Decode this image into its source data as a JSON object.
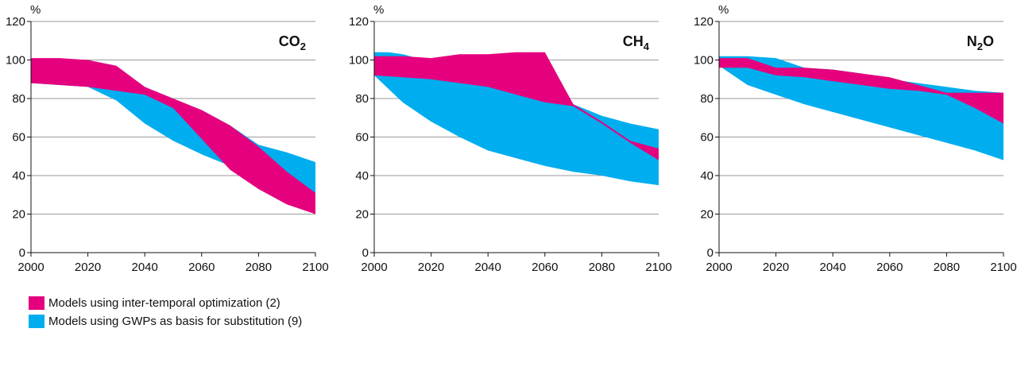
{
  "chart_data": [
    {
      "type": "area",
      "title": "CO",
      "title_sub": "2",
      "ylabel": "%",
      "xlim": [
        2000,
        2100
      ],
      "ylim": [
        0,
        120
      ],
      "xticks": [
        2000,
        2020,
        2040,
        2060,
        2080,
        2100
      ],
      "yticks": [
        0,
        20,
        40,
        60,
        80,
        100,
        120
      ],
      "grid": true,
      "bands": [
        {
          "series": "gwp",
          "x": [
            2000,
            2010,
            2020,
            2030,
            2040,
            2050,
            2060,
            2070,
            2080,
            2090,
            2100
          ],
          "upper": [
            100,
            100,
            100,
            96,
            86,
            79,
            74,
            66,
            56,
            52,
            47
          ],
          "lower": [
            88,
            87,
            86,
            79,
            67,
            58,
            51,
            45,
            40,
            35,
            30
          ]
        },
        {
          "series": "inter",
          "x": [
            2000,
            2010,
            2020,
            2030,
            2040,
            2050,
            2060,
            2070,
            2080,
            2090,
            2100
          ],
          "upper": [
            101,
            101,
            100,
            97,
            86,
            80,
            74,
            66,
            55,
            42,
            31
          ],
          "lower": [
            88,
            87,
            86,
            84,
            82,
            75,
            59,
            43,
            33,
            25,
            20
          ]
        }
      ]
    },
    {
      "type": "area",
      "title": "CH",
      "title_sub": "4",
      "ylabel": "%",
      "xlim": [
        2000,
        2100
      ],
      "ylim": [
        0,
        120
      ],
      "xticks": [
        2000,
        2020,
        2040,
        2060,
        2080,
        2100
      ],
      "yticks": [
        0,
        20,
        40,
        60,
        80,
        100,
        120
      ],
      "grid": true,
      "bands": [
        {
          "series": "gwp",
          "x": [
            2000,
            2005,
            2010,
            2015,
            2020,
            2025,
            2030,
            2040,
            2050,
            2060,
            2070,
            2080,
            2090,
            2100
          ],
          "upper": [
            104,
            104,
            103,
            101,
            100,
            99,
            97,
            93,
            86,
            80,
            77,
            71,
            67,
            64
          ],
          "lower": [
            92,
            85,
            78,
            73,
            68,
            64,
            60,
            53,
            49,
            45,
            42,
            40,
            37,
            35
          ]
        },
        {
          "series": "inter",
          "x": [
            2000,
            2010,
            2020,
            2030,
            2040,
            2050,
            2060,
            2070,
            2080,
            2090,
            2100
          ],
          "upper": [
            102,
            102,
            101,
            103,
            103,
            104,
            104,
            77,
            68,
            58,
            54
          ],
          "lower": [
            92,
            91,
            90,
            88,
            86,
            82,
            78,
            76,
            67,
            57,
            48
          ]
        }
      ]
    },
    {
      "type": "area",
      "title": "N",
      "title_sub": "2",
      "title_tail": "O",
      "ylabel": "%",
      "xlim": [
        2000,
        2100
      ],
      "ylim": [
        0,
        120
      ],
      "xticks": [
        2000,
        2020,
        2040,
        2060,
        2080,
        2100
      ],
      "yticks": [
        0,
        20,
        40,
        60,
        80,
        100,
        120
      ],
      "grid": true,
      "bands": [
        {
          "series": "gwp",
          "x": [
            2000,
            2010,
            2020,
            2030,
            2040,
            2050,
            2060,
            2070,
            2080,
            2090,
            2100
          ],
          "upper": [
            102,
            102,
            101,
            96,
            95,
            93,
            90,
            88,
            86,
            84,
            83
          ],
          "lower": [
            97,
            87,
            82,
            77,
            73,
            69,
            65,
            61,
            57,
            53,
            48
          ]
        },
        {
          "series": "inter",
          "x": [
            2000,
            2010,
            2020,
            2030,
            2040,
            2050,
            2060,
            2070,
            2080,
            2090,
            2100
          ],
          "upper": [
            101,
            101,
            96,
            96,
            95,
            93,
            91,
            87,
            83,
            83,
            83
          ],
          "lower": [
            96,
            96,
            92,
            91,
            89,
            87,
            85,
            84,
            82,
            75,
            67
          ]
        }
      ]
    }
  ],
  "series_styles": {
    "gwp": {
      "color": "#00ADEF"
    },
    "inter": {
      "color": "#E5007E"
    }
  },
  "legend": [
    {
      "label": "Models using inter-temporal optimization (2)",
      "color": "#E5007E"
    },
    {
      "label": "Models using GWPs as basis for substitution (9)",
      "color": "#00ADEF"
    }
  ]
}
